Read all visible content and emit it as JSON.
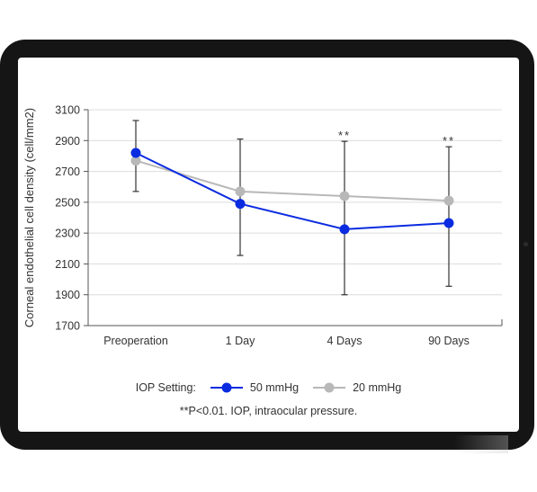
{
  "chart_data": {
    "type": "line",
    "ylabel": "Corneal endothelial cell density (cell/mm2)",
    "categories": [
      "Preoperation",
      "1 Day",
      "4 Days",
      "90 Days"
    ],
    "ylim": [
      1700,
      3100
    ],
    "yticks": [
      1700,
      1900,
      2100,
      2300,
      2500,
      2700,
      2900,
      3100
    ],
    "grid": true,
    "legend_title": "IOP Setting:",
    "series": [
      {
        "name": "50 mmHg",
        "color": "#0a2be0",
        "values": [
          2820,
          2490,
          2325,
          2365
        ],
        "error_low": [
          2570,
          2155,
          1900,
          1955
        ],
        "error_high": [
          3030,
          2910,
          2895,
          2860
        ]
      },
      {
        "name": "20 mmHg",
        "color": "#b8b8b8",
        "values": [
          2770,
          2570,
          2540,
          2510
        ]
      }
    ],
    "annotations": [
      "",
      "",
      "**",
      "**"
    ],
    "note": "**P<0.01. IOP, intraocular pressure."
  }
}
